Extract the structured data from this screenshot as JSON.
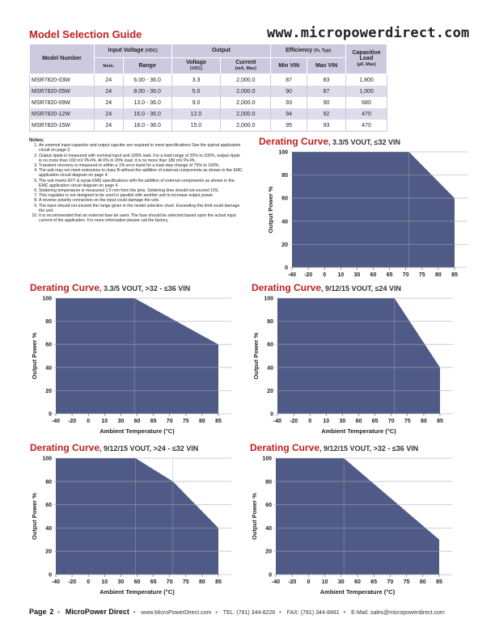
{
  "header": {
    "title": "Model Selection Guide",
    "website": "www.micropowerdirect.com"
  },
  "table": {
    "headers": {
      "model": "Model Number",
      "input_voltage": "Input Voltage",
      "input_voltage_unit": "(VDC)",
      "nom": "Nom.",
      "range": "Range",
      "output": "Output",
      "voltage": "Voltage",
      "voltage_unit": "(VDC)",
      "current": "Current",
      "current_unit": "(mA, Max)",
      "efficiency": "Efficiency",
      "efficiency_unit": "(%, Typ)",
      "min_vin": "Min VIN",
      "max_vin": "Max VIN",
      "cap_load": "Capacitive Load",
      "cap_unit": "(µF, Max)"
    },
    "rows": [
      [
        "MSR7820-03W",
        "24",
        "6.00 - 36.0",
        "3.3",
        "2,000.0",
        "87",
        "83",
        "1,800"
      ],
      [
        "MSR7820-05W",
        "24",
        "8.00 - 36.0",
        "5.0",
        "2,000.0",
        "90",
        "87",
        "1,000"
      ],
      [
        "MSR7820-09W",
        "24",
        "13.0 - 36.0",
        "9.0",
        "2,000.0",
        "93",
        "90",
        "680"
      ],
      [
        "MSR7820-12W",
        "24",
        "16.0 - 36.0",
        "12.0",
        "2,000.0",
        "94",
        "92",
        "470"
      ],
      [
        "MSR7820-15W",
        "24",
        "18.0 - 36.0",
        "15.0",
        "2,000.0",
        "95",
        "93",
        "470"
      ]
    ]
  },
  "notes": {
    "title": "Notes:",
    "items": [
      "An external input capacitor and output capcitor are required to meet specifications See the typical application circuit on page 3.",
      "Output ripple is measured with nominal input and 100% load. For a load range of 20% to 100%, output ripple is no more than 100 mV Pk-Pk. At 0% to 20% load, it is no more than 180 mV Pk-Pk.",
      "Transient recovery is measured to within a 1% error band for a load step change of 75% to 100%.",
      "The unit may not meet emissions to class B without the addition of external components as shown in the EMC application circuit diagram on page 4.",
      "The unit meets EFT & surge EMS specifications with the addition of external components as shown in the EMC application circuit diagram on page 4.",
      "Soldering temperature is measured 1.5 mm from the pins. Soldering time should not exceed 10S.",
      "This regulator is not designed to be used in parallel with another unit to increase output power.",
      "A reverse polarity connection on the input could damage the unit.",
      "The input should not exceed the range given in the model selection chart. Exceeding this limit could damage the unit.",
      "It is recommended that an external fuse be used. The fuse should be selected based upon the actual input current of the application. For more information please call the factory."
    ]
  },
  "chart_data": [
    {
      "type": "area",
      "title": "Derating Curve",
      "subtitle": ", 3.3/5 VOUT, ≤32 VIN",
      "ylabel": "Output Power %",
      "xlabel": "",
      "x_ticks": [
        -40,
        -20,
        0,
        10,
        30,
        60,
        65,
        70,
        75,
        80,
        85
      ],
      "y_ticks": [
        0,
        20,
        40,
        60,
        80,
        100
      ],
      "ylim": [
        0,
        100
      ],
      "grid": true,
      "x": [
        -40,
        71,
        85
      ],
      "y": [
        100,
        100,
        60
      ]
    },
    {
      "type": "area",
      "title": "Derating Curve",
      "subtitle": ", 3.3/5 VOUT, >32 - ≤36 VIN",
      "ylabel": "Output Power %",
      "xlabel": "Ambient Temperature (°C)",
      "x_ticks": [
        -40,
        -20,
        0,
        10,
        30,
        60,
        65,
        70,
        75,
        80,
        85
      ],
      "y_ticks": [
        0,
        20,
        40,
        60,
        80,
        100
      ],
      "ylim": [
        0,
        100
      ],
      "grid": true,
      "x": [
        -40,
        55,
        85
      ],
      "y": [
        100,
        100,
        60
      ]
    },
    {
      "type": "area",
      "title": "Derating Curve",
      "subtitle": ", 9/12/15 VOUT, ≤24 VIN",
      "ylabel": "Output Power %",
      "xlabel": "Ambient Temperature (°C)",
      "x_ticks": [
        -40,
        -20,
        0,
        10,
        30,
        60,
        65,
        70,
        75,
        80,
        85
      ],
      "y_ticks": [
        0,
        20,
        40,
        60,
        80,
        100
      ],
      "ylim": [
        0,
        100
      ],
      "grid": true,
      "x": [
        -40,
        71,
        85
      ],
      "y": [
        100,
        100,
        40
      ]
    },
    {
      "type": "area",
      "title": "Derating Curve",
      "subtitle": ", 9/12/15 VOUT, >24 - ≤32 VIN",
      "ylabel": "Output Power %",
      "xlabel": "Ambient Temperature (°C)",
      "x_ticks": [
        -40,
        -20,
        0,
        10,
        30,
        60,
        65,
        70,
        75,
        80,
        85
      ],
      "y_ticks": [
        0,
        20,
        40,
        60,
        80,
        100
      ],
      "ylim": [
        0,
        100
      ],
      "grid": true,
      "x": [
        -40,
        57,
        71,
        85
      ],
      "y": [
        100,
        100,
        80,
        40
      ]
    },
    {
      "type": "area",
      "title": "Derating Curve",
      "subtitle": ", 9/12/15 VOUT, >32 - ≤36 VIN",
      "ylabel": "Output Power %",
      "xlabel": "Ambient Temperature (°C)",
      "x_ticks": [
        -40,
        -20,
        0,
        10,
        30,
        60,
        65,
        70,
        75,
        80,
        85
      ],
      "y_ticks": [
        0,
        20,
        40,
        60,
        80,
        100
      ],
      "ylim": [
        0,
        100
      ],
      "grid": true,
      "x": [
        -40,
        35,
        85
      ],
      "y": [
        100,
        100,
        30
      ]
    }
  ],
  "colors": {
    "accent": "#c0201e",
    "fill": "#4f5a87",
    "table_header": "#cdc9df"
  },
  "footer": {
    "page_label": "Page",
    "page_number": "2",
    "company": "MicroPower Direct",
    "website": "www.MicroPowerDirect.com",
    "tel": "TEL: (781) 344-8226",
    "fax": "FAX: (781) 344-8481",
    "email": "E-Mail: sales@micropowerdirect.com"
  }
}
